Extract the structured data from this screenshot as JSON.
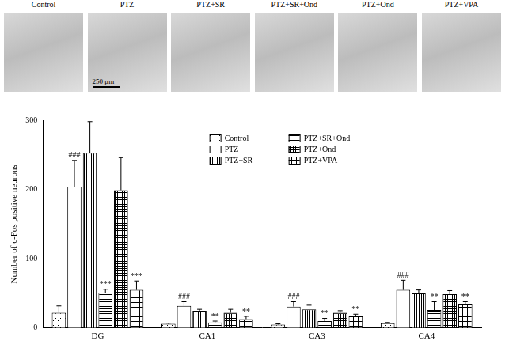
{
  "image_panels": {
    "labels": [
      "Control",
      "PTZ",
      "PTZ+SR",
      "PTZ+SR+Ond",
      "PTZ+Ond",
      "PTZ+VPA"
    ],
    "scale_bar": "250 μm"
  },
  "chart_data": {
    "type": "bar",
    "y_label": "Number of c-Fos positive neurons",
    "categories": [
      "DG",
      "CA1",
      "CA3",
      "CA4"
    ],
    "ylim": [
      0,
      300
    ],
    "yticks": [
      0,
      100,
      200,
      300
    ],
    "grid": false,
    "legend": "top",
    "series": [
      {
        "name": "Control",
        "color": "#ffffff",
        "values": [
          22,
          6,
          5,
          7
        ],
        "errors": [
          10,
          1,
          1,
          1
        ],
        "significance": [
          null,
          null,
          null,
          null
        ]
      },
      {
        "name": "PTZ",
        "color": "#ffffff",
        "values": [
          204,
          32,
          31,
          55
        ],
        "errors": [
          38,
          6,
          7,
          14
        ],
        "significance": [
          "###",
          "###",
          "###",
          "###"
        ]
      },
      {
        "name": "PTZ+SR",
        "color": "#ffffff",
        "values": [
          253,
          25,
          27,
          50
        ],
        "errors": [
          45,
          2,
          6,
          5
        ],
        "significance": [
          null,
          null,
          null,
          null
        ]
      },
      {
        "name": "PTZ+SR+Ond",
        "color": "#ffffff",
        "values": [
          51,
          8,
          10,
          26
        ],
        "errors": [
          5,
          2,
          4,
          12
        ],
        "significance": [
          "***",
          "**",
          "**",
          "**"
        ]
      },
      {
        "name": "PTZ+Ond",
        "color": "#ffffff",
        "values": [
          199,
          22,
          22,
          49
        ],
        "errors": [
          47,
          5,
          3,
          5
        ],
        "significance": [
          null,
          null,
          null,
          null
        ]
      },
      {
        "name": "PTZ+VPA",
        "color": "#ffffff",
        "values": [
          55,
          13,
          17,
          34
        ],
        "errors": [
          13,
          4,
          3,
          4
        ],
        "significance": [
          "***",
          "**",
          "**",
          "**"
        ]
      }
    ]
  }
}
